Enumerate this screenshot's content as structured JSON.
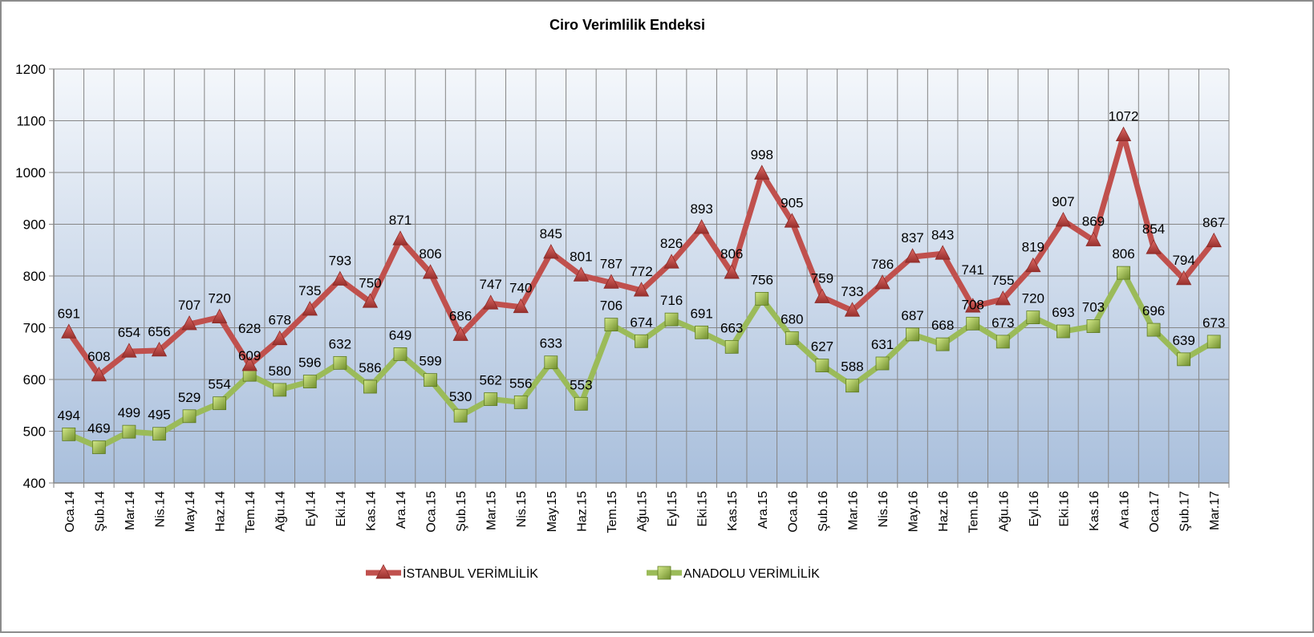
{
  "chart_data": {
    "type": "line",
    "title": "Ciro Verimlilik Endeksi",
    "xlabel": "",
    "ylabel": "",
    "ylim": [
      400,
      1200
    ],
    "yticks": [
      400,
      500,
      600,
      700,
      800,
      900,
      1000,
      1100,
      1200
    ],
    "grid": true,
    "legend_position": "bottom",
    "categories": [
      "Oca.14",
      "Şub.14",
      "Mar.14",
      "Nis.14",
      "May.14",
      "Haz.14",
      "Tem.14",
      "Ağu.14",
      "Eyl.14",
      "Eki.14",
      "Kas.14",
      "Ara.14",
      "Oca.15",
      "Şub.15",
      "Mar.15",
      "Nis.15",
      "May.15",
      "Haz.15",
      "Tem.15",
      "Ağu.15",
      "Eyl.15",
      "Eki.15",
      "Kas.15",
      "Ara.15",
      "Oca.16",
      "Şub.16",
      "Mar.16",
      "Nis.16",
      "May.16",
      "Haz.16",
      "Tem.16",
      "Ağu.16",
      "Eyl.16",
      "Eki.16",
      "Kas.16",
      "Ara.16",
      "Oca.17",
      "Şub.17",
      "Mar.17"
    ],
    "series": [
      {
        "name": "İSTANBUL VERİMLİLİK",
        "color": "#c0504d",
        "marker": "triangle",
        "values": [
          691,
          608,
          654,
          656,
          707,
          720,
          628,
          678,
          735,
          793,
          750,
          871,
          806,
          686,
          747,
          740,
          845,
          801,
          787,
          772,
          826,
          893,
          806,
          998,
          905,
          759,
          733,
          786,
          837,
          843,
          741,
          755,
          819,
          907,
          869,
          1072,
          854,
          794,
          867
        ]
      },
      {
        "name": "ANADOLU VERİMLİLİK",
        "color": "#9bbb59",
        "marker": "square",
        "values": [
          494,
          469,
          499,
          495,
          529,
          554,
          609,
          580,
          596,
          632,
          586,
          649,
          599,
          530,
          562,
          556,
          633,
          553,
          706,
          674,
          716,
          691,
          663,
          756,
          680,
          627,
          588,
          631,
          687,
          668,
          708,
          673,
          720,
          693,
          703,
          806,
          696,
          639,
          673
        ]
      }
    ]
  }
}
